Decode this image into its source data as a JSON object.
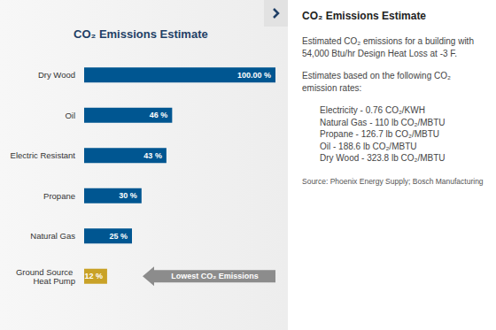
{
  "chart_data": {
    "type": "bar",
    "title": "CO₂ Emissions Estimate",
    "orientation": "horizontal",
    "categories": [
      "Dry Wood",
      "Oil",
      "Electric Resistant",
      "Propane",
      "Natural Gas",
      "Ground Source Heat Pump"
    ],
    "values": [
      100,
      46,
      43,
      30,
      25,
      12
    ],
    "value_labels": [
      "100.00 %",
      "46 %",
      "43 %",
      "30 %",
      "25 %",
      "12 %"
    ],
    "colors": [
      "#005691",
      "#005691",
      "#005691",
      "#005691",
      "#005691",
      "#c9a227"
    ],
    "xlim": [
      0,
      100
    ],
    "data_labels": true,
    "tick_labels": "y",
    "grid": false,
    "annotation": "Lowest CO₂ Emissions"
  },
  "panel": {
    "title": "CO₂ Emissions Estimate",
    "intro": "Estimated CO₂ emissions for a building with 54,000 Btu/hr Design Heat Loss at -3 F.",
    "basis": "Estimates based on the following CO₂ emission rates:",
    "rates": [
      "Electricity - 0.76 CO₂/KWH",
      "Natural Gas - 110 lb CO₂/MBTU",
      "Propane - 126.7 lb CO₂/MBTU",
      "Oil - 188.6 lb CO₂/MBTU",
      "Dry Wood - 323.8 lb CO₂/MBTU"
    ],
    "source": "Source: Phoenix Energy Supply; Bosch Manufacturing"
  }
}
